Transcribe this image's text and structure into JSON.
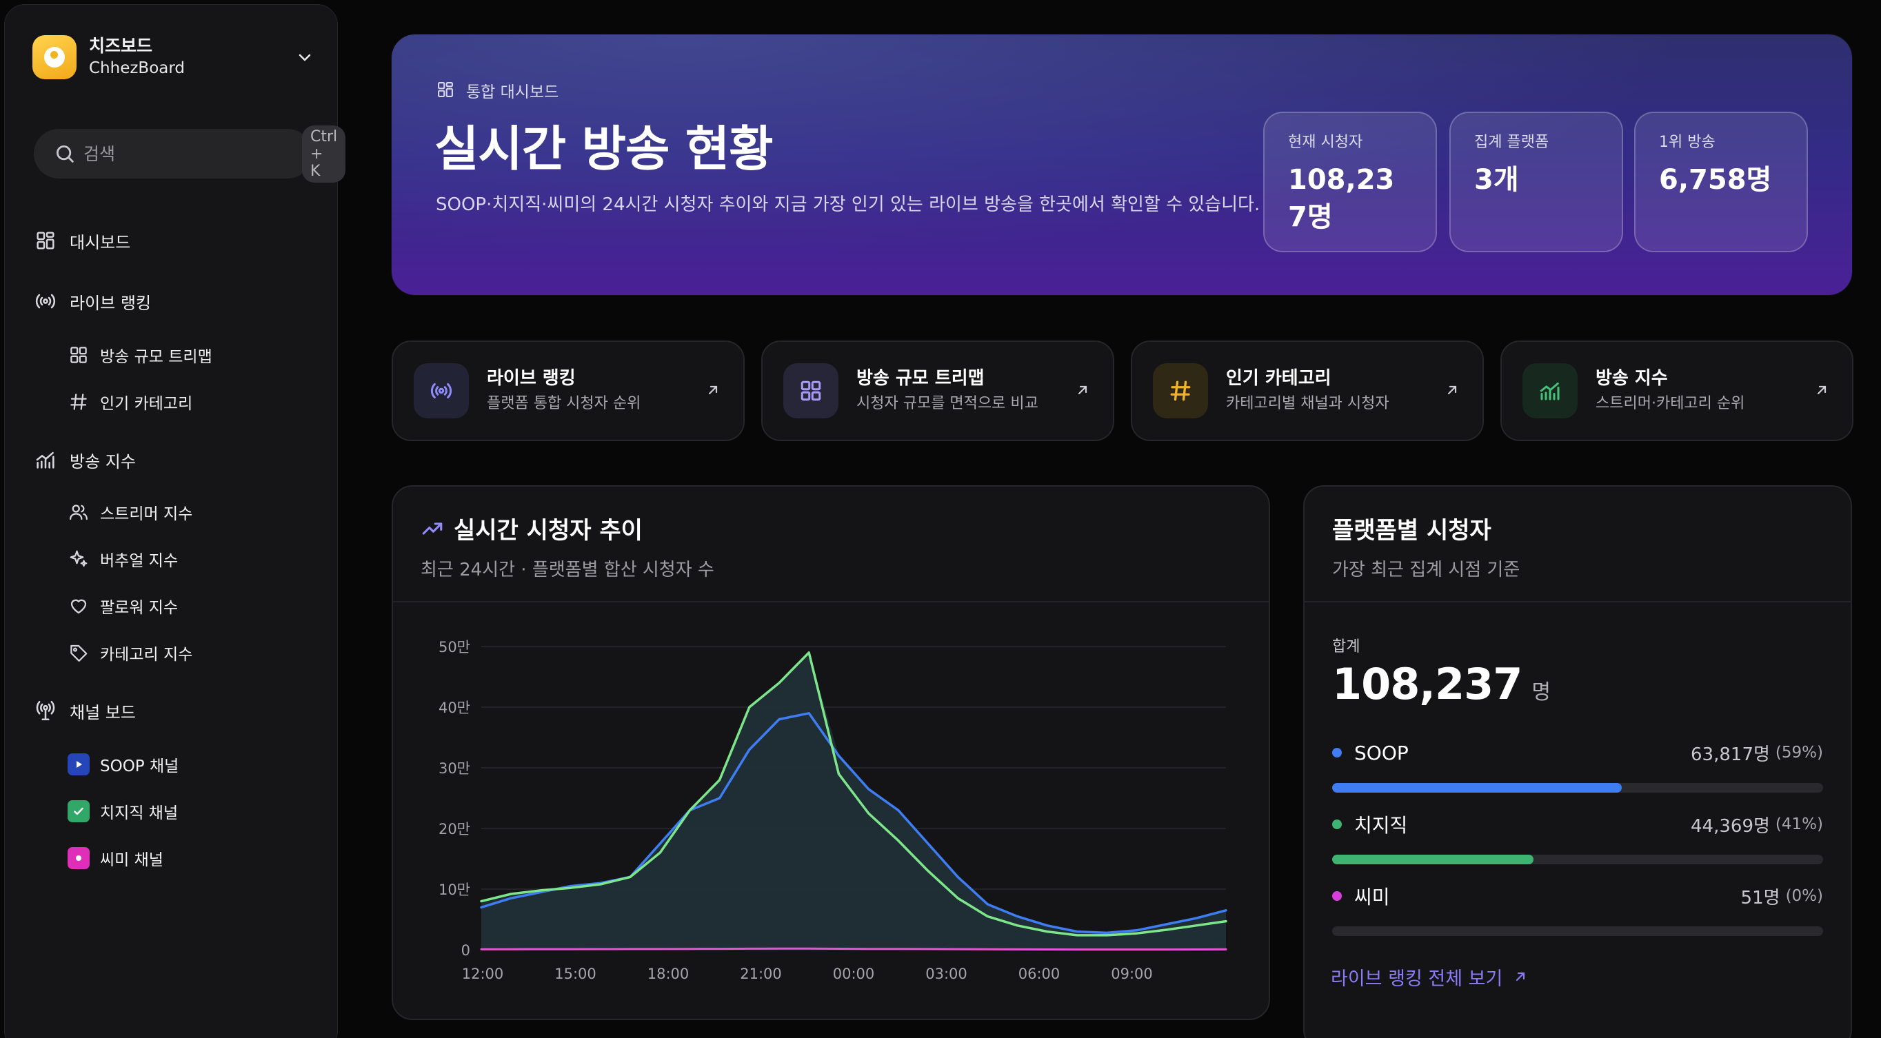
{
  "sidebar": {
    "brand_title": "치즈보드",
    "brand_subtitle": "ChhezBoard",
    "search_placeholder": "검색",
    "search_shortcut": "Ctrl + K",
    "nav": {
      "dashboard": "대시보드",
      "live_ranking": "라이브 랭킹",
      "treemap": "방송 규모 트리맵",
      "categories": "인기 카테고리",
      "broadcast_index": "방송 지수",
      "streamer_index": "스트리머 지수",
      "virtual_index": "버추얼 지수",
      "follow_index": "팔로워 지수",
      "category_index": "카테고리 지수",
      "channel_board": "채널 보드",
      "soop_channel": "SOOP 채널",
      "chzzk_channel": "치지직 채널",
      "ssimi_channel": "씨미 채널"
    }
  },
  "hero": {
    "eyebrow": "통합 대시보드",
    "title": "실시간 방송 현황",
    "description": "SOOP·치지직·씨미의 24시간 시청자 추이와 지금 가장 인기 있는 라이브 방송을 한곳에서 확인할 수 있습니다.",
    "stats": [
      {
        "label": "현재 시청자",
        "value": "108,237명"
      },
      {
        "label": "집계 플랫폼",
        "value": "3개"
      },
      {
        "label": "1위 방송",
        "value": "6,758명"
      }
    ]
  },
  "quick_cards": [
    {
      "title": "라이브 랭킹",
      "subtitle": "플랫폼 통합 시청자 순위",
      "icon": "broadcast-icon"
    },
    {
      "title": "방송 규모 트리맵",
      "subtitle": "시청자 규모를 면적으로 비교",
      "icon": "grid-icon"
    },
    {
      "title": "인기 카테고리",
      "subtitle": "카테고리별 채널과 시청자",
      "icon": "hash-icon"
    },
    {
      "title": "방송 지수",
      "subtitle": "스트리머·카테고리 순위",
      "icon": "chart-icon"
    }
  ],
  "trend_panel": {
    "title": "실시간 시청자 추이",
    "subtitle": "최근 24시간 · 플랫폼별 합산 시청자 수"
  },
  "platform_panel": {
    "title": "플랫폼별 시청자",
    "subtitle": "가장 최근 집계 시점 기준",
    "total_label": "합계",
    "total_value": "108,237",
    "total_unit": "명",
    "platforms": [
      {
        "name": "SOOP",
        "value": "63,817명",
        "pct": "(59%)",
        "share": 0.59,
        "color": "#3f7df2"
      },
      {
        "name": "치지직",
        "value": "44,369명",
        "pct": "(41%)",
        "share": 0.41,
        "color": "#3fb371"
      },
      {
        "name": "씨미",
        "value": "51명",
        "pct": "(0%)",
        "share": 0.0,
        "color": "#d63fdc"
      }
    ],
    "more_link": "라이브 랭킹 전체 보기"
  },
  "chart_data": {
    "type": "line",
    "title": "실시간 시청자 추이",
    "ylim": [
      0,
      500000
    ],
    "yticks": [
      {
        "value": 0,
        "label": "0"
      },
      {
        "value": 100000,
        "label": "10만"
      },
      {
        "value": 200000,
        "label": "20만"
      },
      {
        "value": 300000,
        "label": "30만"
      },
      {
        "value": 400000,
        "label": "40만"
      },
      {
        "value": 500000,
        "label": "50만"
      }
    ],
    "x": [
      "12:00",
      "13:00",
      "14:00",
      "15:00",
      "16:00",
      "17:00",
      "18:00",
      "19:00",
      "20:00",
      "21:00",
      "22:00",
      "22:30",
      "23:00",
      "00:00",
      "01:00",
      "02:00",
      "03:00",
      "04:00",
      "05:00",
      "06:00",
      "07:00",
      "08:00",
      "09:00",
      "10:00",
      "11:00",
      "12:00"
    ],
    "xtick_labels": [
      "12:00",
      "15:00",
      "18:00",
      "21:00",
      "00:00",
      "03:00",
      "06:00",
      "09:00"
    ],
    "grid": true,
    "series": [
      {
        "color": "#3f7df2",
        "values": [
          70000,
          85000,
          95000,
          105000,
          110000,
          120000,
          175000,
          230000,
          250000,
          330000,
          380000,
          390000,
          320000,
          265000,
          230000,
          175000,
          120000,
          75000,
          55000,
          40000,
          30000,
          28000,
          32000,
          42000,
          52000,
          65000
        ]
      },
      {
        "color": "#7ee68a",
        "values": [
          80000,
          92000,
          98000,
          102000,
          108000,
          120000,
          160000,
          230000,
          280000,
          400000,
          440000,
          490000,
          290000,
          225000,
          180000,
          130000,
          85000,
          55000,
          40000,
          30000,
          24000,
          24000,
          27000,
          33000,
          40000,
          47000
        ]
      },
      {
        "color": "#e455d2",
        "values": [
          800,
          900,
          1000,
          1000,
          1100,
          1200,
          1300,
          1500,
          1600,
          1800,
          1900,
          1900,
          1700,
          1500,
          1400,
          1200,
          1000,
          800,
          700,
          600,
          500,
          500,
          500,
          500,
          600,
          700
        ]
      }
    ]
  }
}
